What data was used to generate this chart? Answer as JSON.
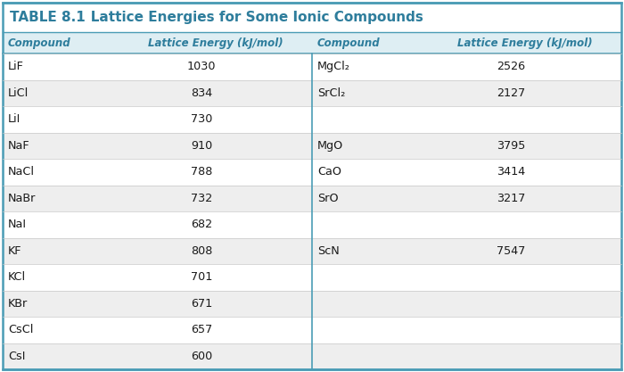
{
  "title_bold": "TABLE 8.1",
  "title_rest": "   Lattice Energies for Some Ionic Compounds",
  "col_headers_left": [
    "Compound",
    "Lattice Energy (kJ/mol)"
  ],
  "col_headers_right": [
    "Compound",
    "Lattice Energy (kJ/mol)"
  ],
  "left_data": [
    [
      "LiF",
      "1030"
    ],
    [
      "LiCl",
      "834"
    ],
    [
      "LiI",
      "730"
    ],
    [
      "NaF",
      "910"
    ],
    [
      "NaCl",
      "788"
    ],
    [
      "NaBr",
      "732"
    ],
    [
      "NaI",
      "682"
    ],
    [
      "KF",
      "808"
    ],
    [
      "KCl",
      "701"
    ],
    [
      "KBr",
      "671"
    ],
    [
      "CsCl",
      "657"
    ],
    [
      "CsI",
      "600"
    ]
  ],
  "right_data": [
    [
      "MgCl₂",
      "2526"
    ],
    [
      "SrCl₂",
      "2127"
    ],
    [
      "",
      ""
    ],
    [
      "MgO",
      "3795"
    ],
    [
      "CaO",
      "3414"
    ],
    [
      "SrO",
      "3217"
    ],
    [
      "",
      ""
    ],
    [
      "ScN",
      "7547"
    ],
    [
      "",
      ""
    ],
    [
      "",
      ""
    ],
    [
      "",
      ""
    ],
    [
      "",
      ""
    ]
  ],
  "title_color": "#2e7d9c",
  "header_bg": "#deeef3",
  "header_text_color": "#2e7d9c",
  "divider_color": "#4a9cb5",
  "border_color": "#4a9cb5",
  "text_color": "#1a1a1a",
  "row_bg_white": "#ffffff",
  "row_bg_gray": "#eeeeee",
  "fig_bg": "#ffffff"
}
